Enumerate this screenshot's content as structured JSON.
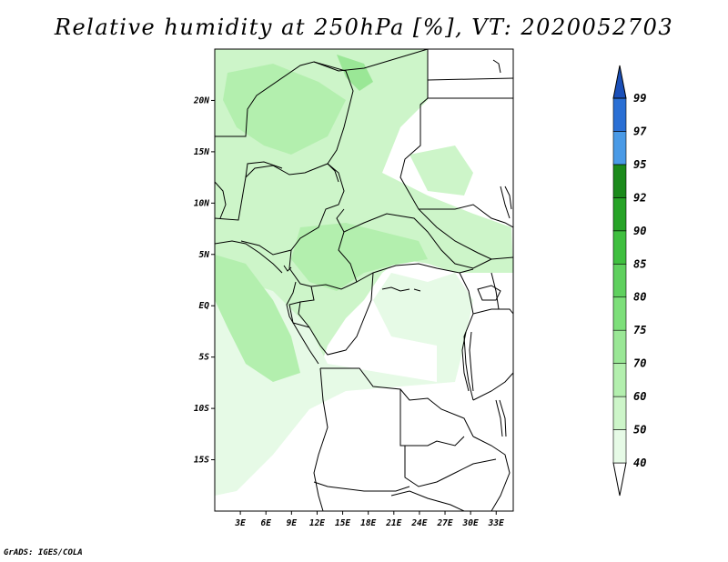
{
  "title": "Relative humidity at 250hPa [%], VT: 2020052703",
  "credit": "GrADS: IGES/COLA",
  "map": {
    "lon_range": [
      0,
      35
    ],
    "lat_range": [
      -20,
      25
    ],
    "x_ticks": [
      "3E",
      "6E",
      "9E",
      "12E",
      "15E",
      "18E",
      "21E",
      "24E",
      "27E",
      "30E",
      "33E"
    ],
    "y_ticks": [
      "20N",
      "15N",
      "10N",
      "5N",
      "EQ",
      "5S",
      "10S",
      "15S"
    ]
  },
  "colorbar": {
    "levels": [
      "40",
      "50",
      "60",
      "70",
      "75",
      "80",
      "85",
      "90",
      "92",
      "95",
      "97",
      "99"
    ],
    "colors": [
      "#ffffff",
      "#e6fae6",
      "#cdf5c9",
      "#b3efae",
      "#9ae796",
      "#7ddf7a",
      "#5fd05e",
      "#3fbf3f",
      "#27a327",
      "#1b8a1b",
      "#4a9ae6",
      "#2a6fd4",
      "#1a4fb8"
    ]
  }
}
